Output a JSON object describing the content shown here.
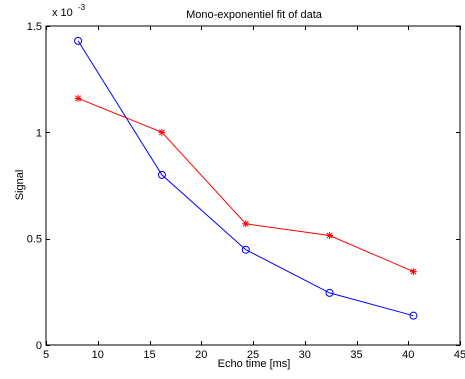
{
  "chart_data": {
    "type": "line",
    "title": "Mono-exponentiel fit of data",
    "xlabel": "Echo time [ms]",
    "ylabel": "Signal",
    "xlim": [
      5,
      45
    ],
    "ylim": [
      0,
      0.0015
    ],
    "xticks": [
      5,
      10,
      15,
      20,
      25,
      30,
      35,
      40,
      45
    ],
    "xtick_labels": [
      "5",
      "10",
      "15",
      "20",
      "25",
      "30",
      "35",
      "40",
      "45"
    ],
    "yticks": [
      0,
      0.0005,
      0.001,
      0.0015
    ],
    "ytick_labels": [
      "0",
      "0.5",
      "1",
      "1.5"
    ],
    "y_multiplier": {
      "base": "x 10",
      "exponent": "-3"
    },
    "grid": false,
    "legend": "none",
    "series": [
      {
        "color": "#0000ff",
        "marker": "circle",
        "x": [
          8.1,
          16.2,
          24.3,
          32.4,
          40.5
        ],
        "y": [
          0.00143,
          0.0008,
          0.000448,
          0.000245,
          0.000138
        ]
      },
      {
        "color": "#ff0000",
        "marker": "star",
        "x": [
          8.1,
          16.2,
          24.3,
          32.4,
          40.5
        ],
        "y": [
          0.00116,
          0.001,
          0.00057,
          0.000515,
          0.000345
        ]
      }
    ]
  }
}
